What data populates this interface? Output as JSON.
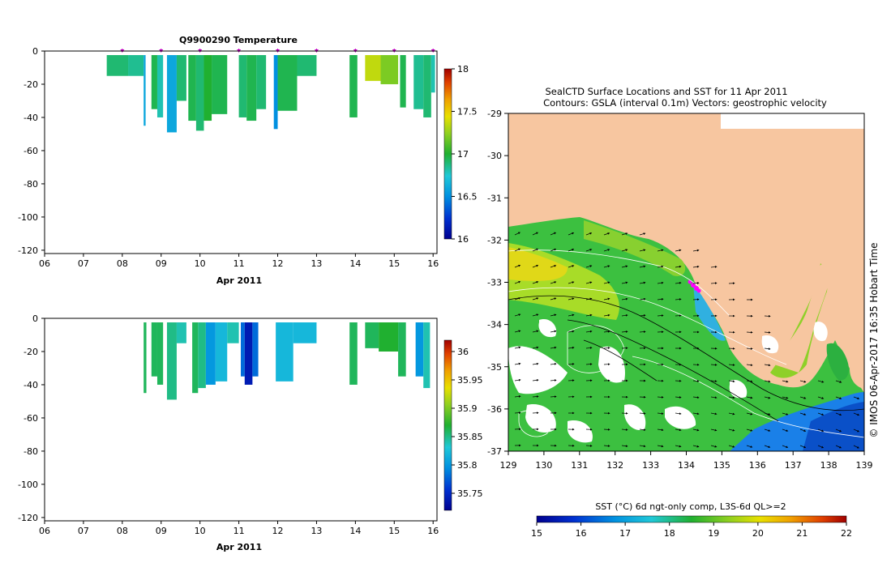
{
  "chart_data": [
    {
      "type": "heatmap",
      "title": "Q9900290  Temperature",
      "xlabel": "Apr 2011",
      "x_ticks": [
        "06",
        "07",
        "08",
        "09",
        "10",
        "11",
        "12",
        "13",
        "14",
        "15",
        "16"
      ],
      "y_ticks": [
        "0",
        "-20",
        "-40",
        "-60",
        "-80",
        "-100",
        "-120"
      ],
      "xlim": [
        6,
        16.1
      ],
      "ylim": [
        -122,
        0
      ],
      "colorbar": {
        "min": 16,
        "max": 18,
        "ticks": [
          "16",
          "16.5",
          "17",
          "17.5",
          "18"
        ]
      },
      "profile_markers_day": [
        8,
        9,
        10,
        11,
        12,
        13,
        14,
        15,
        16
      ],
      "profiles": [
        {
          "x0": 7.6,
          "x1": 8.15,
          "depth": -15,
          "value": 16.9
        },
        {
          "x0": 8.15,
          "x1": 8.55,
          "depth": -15,
          "value": 16.85
        },
        {
          "x0": 8.55,
          "x1": 8.6,
          "depth": -45,
          "value": 16.6
        },
        {
          "x0": 8.75,
          "x1": 8.9,
          "depth": -35,
          "value": 16.95
        },
        {
          "x0": 8.9,
          "x1": 9.05,
          "depth": -40,
          "value": 16.8
        },
        {
          "x0": 9.15,
          "x1": 9.4,
          "depth": -49,
          "value": 16.6
        },
        {
          "x0": 9.4,
          "x1": 9.65,
          "depth": -30,
          "value": 16.9
        },
        {
          "x0": 9.7,
          "x1": 9.9,
          "depth": -42,
          "value": 16.95
        },
        {
          "x0": 9.9,
          "x1": 10.1,
          "depth": -48,
          "value": 16.9
        },
        {
          "x0": 10.1,
          "x1": 10.3,
          "depth": -42,
          "value": 17.0
        },
        {
          "x0": 10.3,
          "x1": 10.7,
          "depth": -38,
          "value": 16.95
        },
        {
          "x0": 11.0,
          "x1": 11.2,
          "depth": -40,
          "value": 16.9
        },
        {
          "x0": 11.2,
          "x1": 11.45,
          "depth": -42,
          "value": 16.95
        },
        {
          "x0": 11.45,
          "x1": 11.7,
          "depth": -35,
          "value": 16.9
        },
        {
          "x0": 11.9,
          "x1": 12.0,
          "depth": -47,
          "value": 16.5
        },
        {
          "x0": 12.0,
          "x1": 12.5,
          "depth": -36,
          "value": 16.95
        },
        {
          "x0": 12.5,
          "x1": 13.0,
          "depth": -15,
          "value": 16.9
        },
        {
          "x0": 13.85,
          "x1": 14.05,
          "depth": -40,
          "value": 16.95
        },
        {
          "x0": 14.25,
          "x1": 14.65,
          "depth": -18,
          "value": 17.35
        },
        {
          "x0": 14.65,
          "x1": 15.1,
          "depth": -20,
          "value": 17.2
        },
        {
          "x0": 15.15,
          "x1": 15.3,
          "depth": -34,
          "value": 16.95
        },
        {
          "x0": 15.5,
          "x1": 15.75,
          "depth": -35,
          "value": 16.85
        },
        {
          "x0": 15.75,
          "x1": 15.95,
          "depth": -40,
          "value": 16.9
        },
        {
          "x0": 15.95,
          "x1": 16.05,
          "depth": -25,
          "value": 16.8
        }
      ]
    },
    {
      "type": "heatmap",
      "title": "",
      "xlabel": "Apr 2011",
      "x_ticks": [
        "06",
        "07",
        "08",
        "09",
        "10",
        "11",
        "12",
        "13",
        "14",
        "15",
        "16"
      ],
      "y_ticks": [
        "0",
        "-20",
        "-40",
        "-60",
        "-80",
        "-100",
        "-120"
      ],
      "xlim": [
        6,
        16.1
      ],
      "ylim": [
        -122,
        0
      ],
      "colorbar": {
        "min": 35.72,
        "max": 36.02,
        "ticks": [
          "35.75",
          "35.8",
          "35.85",
          "35.9",
          "35.95",
          "36"
        ]
      },
      "profiles": [
        {
          "x0": 8.55,
          "x1": 8.62,
          "depth": -45,
          "value": 35.86
        },
        {
          "x0": 8.75,
          "x1": 8.9,
          "depth": -35,
          "value": 35.86
        },
        {
          "x0": 8.9,
          "x1": 9.05,
          "depth": -40,
          "value": 35.86
        },
        {
          "x0": 9.15,
          "x1": 9.4,
          "depth": -49,
          "value": 35.85
        },
        {
          "x0": 9.4,
          "x1": 9.65,
          "depth": -15,
          "value": 35.84
        },
        {
          "x0": 9.8,
          "x1": 9.95,
          "depth": -45,
          "value": 35.86
        },
        {
          "x0": 9.95,
          "x1": 10.15,
          "depth": -42,
          "value": 35.85
        },
        {
          "x0": 10.15,
          "x1": 10.4,
          "depth": -40,
          "value": 35.8
        },
        {
          "x0": 10.4,
          "x1": 10.7,
          "depth": -38,
          "value": 35.82
        },
        {
          "x0": 10.7,
          "x1": 11.0,
          "depth": -15,
          "value": 35.84
        },
        {
          "x0": 11.05,
          "x1": 11.15,
          "depth": -35,
          "value": 35.78
        },
        {
          "x0": 11.15,
          "x1": 11.35,
          "depth": -40,
          "value": 35.74
        },
        {
          "x0": 11.35,
          "x1": 11.5,
          "depth": -35,
          "value": 35.78
        },
        {
          "x0": 11.95,
          "x1": 12.4,
          "depth": -38,
          "value": 35.82
        },
        {
          "x0": 12.4,
          "x1": 13.0,
          "depth": -15,
          "value": 35.82
        },
        {
          "x0": 13.85,
          "x1": 14.05,
          "depth": -40,
          "value": 35.86
        },
        {
          "x0": 14.25,
          "x1": 14.6,
          "depth": -18,
          "value": 35.86
        },
        {
          "x0": 14.6,
          "x1": 15.1,
          "depth": -20,
          "value": 35.87
        },
        {
          "x0": 15.1,
          "x1": 15.3,
          "depth": -35,
          "value": 35.86
        },
        {
          "x0": 15.55,
          "x1": 15.75,
          "depth": -35,
          "value": 35.8
        },
        {
          "x0": 15.75,
          "x1": 15.92,
          "depth": -42,
          "value": 35.84
        }
      ]
    },
    {
      "type": "heatmap",
      "title": "SealCTD Surface Locations and SST for 11 Apr 2011",
      "subtitle": "Contours: GSLA (interval 0.1m) Vectors: geostrophic velocity",
      "x_ticks": [
        "129",
        "130",
        "131",
        "132",
        "133",
        "134",
        "135",
        "136",
        "137",
        "138",
        "139"
      ],
      "y_ticks": [
        "-29",
        "-30",
        "-31",
        "-32",
        "-33",
        "-34",
        "-35",
        "-36",
        "-37"
      ],
      "xlim": [
        129,
        139
      ],
      "ylim": [
        -37,
        -29
      ],
      "colorbar": {
        "label": "SST (°C) 6d ngt-only comp, L3S-6d QL>=2",
        "min": 15,
        "max": 22,
        "ticks": [
          "15",
          "16",
          "17",
          "18",
          "19",
          "20",
          "21",
          "22"
        ]
      },
      "side_text": "© IMOS 06-Apr-2017 16:35 Hobart Time"
    }
  ]
}
